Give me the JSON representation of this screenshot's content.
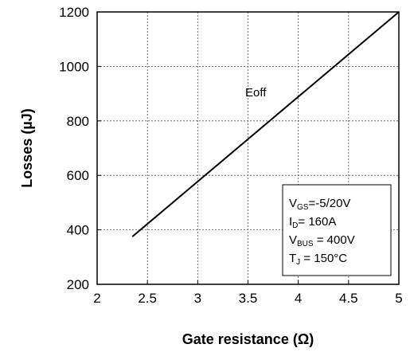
{
  "chart_data": {
    "type": "line",
    "xlabel": "Gate resistance (Ω)",
    "ylabel": "Losses (µJ)",
    "xlim": [
      2,
      5
    ],
    "ylim": [
      200,
      1200
    ],
    "x_ticks": [
      2,
      2.5,
      3,
      3.5,
      4,
      4.5,
      5
    ],
    "x_tick_labels": [
      "2",
      "2.5",
      "3",
      "3.5",
      "4",
      "4.5",
      "5"
    ],
    "y_ticks": [
      200,
      400,
      600,
      800,
      1000,
      1200
    ],
    "y_tick_labels": [
      "200",
      "400",
      "600",
      "800",
      "1000",
      "1200"
    ],
    "grid": true,
    "grid_style": "dotted",
    "series": [
      {
        "name": "Eoff",
        "color": "#000000",
        "x": [
          2.35,
          5.0
        ],
        "y": [
          375,
          1200
        ]
      }
    ],
    "conditions": [
      {
        "main": "V",
        "sub": "GS",
        "rest": "=-5/20V"
      },
      {
        "main": "I",
        "sub": "D",
        "rest": "= 160A"
      },
      {
        "main": "V",
        "sub": "BUS",
        "rest": " = 400V"
      },
      {
        "main": "T",
        "sub": "J",
        "rest": " = 150°C"
      }
    ],
    "conditions_position": "bottom-right"
  }
}
